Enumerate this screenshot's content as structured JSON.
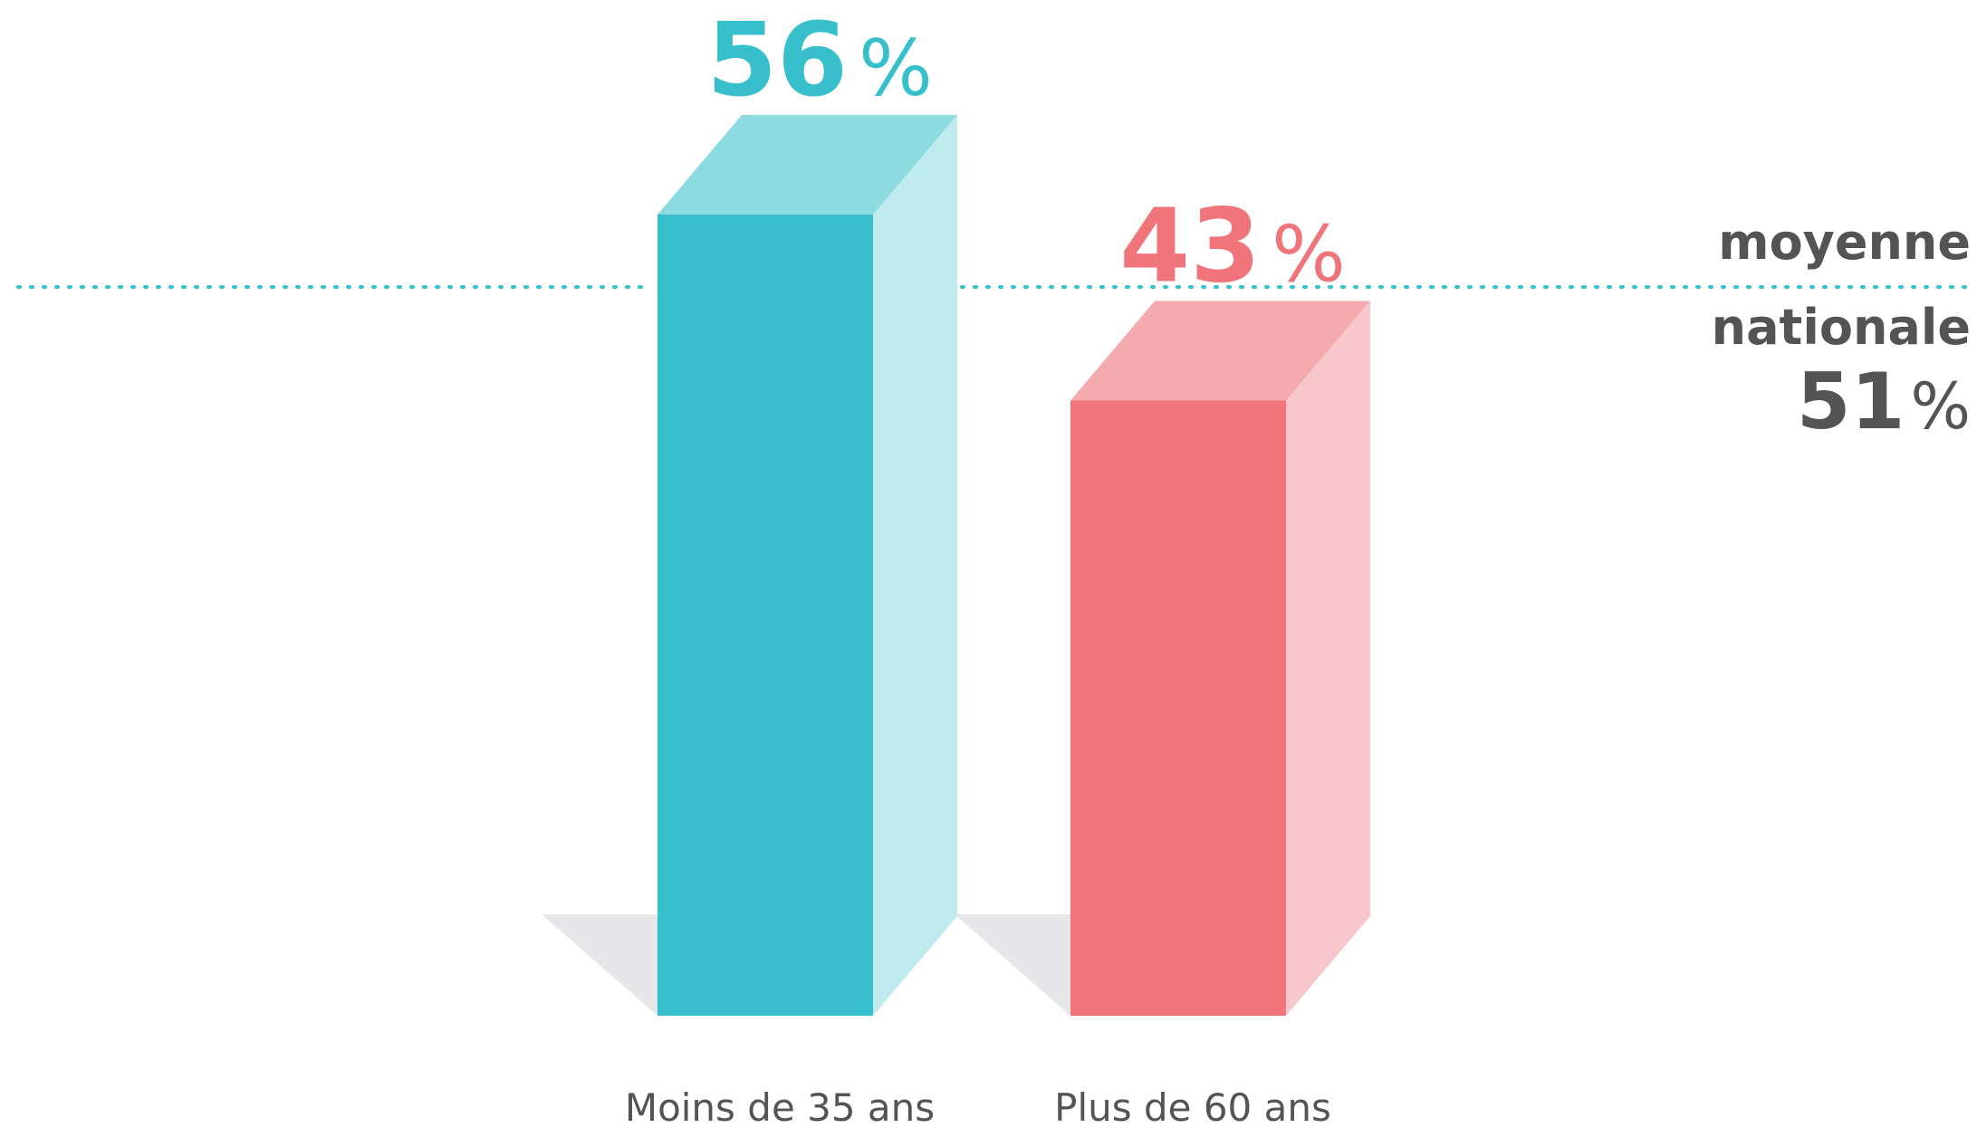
{
  "chart_data": {
    "type": "bar",
    "categories": [
      "Moins de 35 ans",
      "Plus de 60 ans"
    ],
    "values": [
      56,
      43
    ],
    "value_unit": "%",
    "reference_line": {
      "label_line1": "moyenne",
      "label_line2": "nationale",
      "value": 51,
      "unit": "%",
      "style": "dotted"
    },
    "ylim": [
      0,
      65
    ],
    "grid": false,
    "legend": "none"
  },
  "colors": {
    "series": [
      {
        "front": "#37c0cc",
        "side": "#c0ebee",
        "top": "#8bdbe1",
        "label": "#37c0cc"
      },
      {
        "front": "#ef757a",
        "side": "#f7c7cb",
        "top": "#f5aaae",
        "label": "#f0757a"
      }
    ],
    "shadow": "#e7e7ea",
    "average_line": "#37c0cc",
    "average_text": "#545454",
    "category_text": "#545454"
  }
}
